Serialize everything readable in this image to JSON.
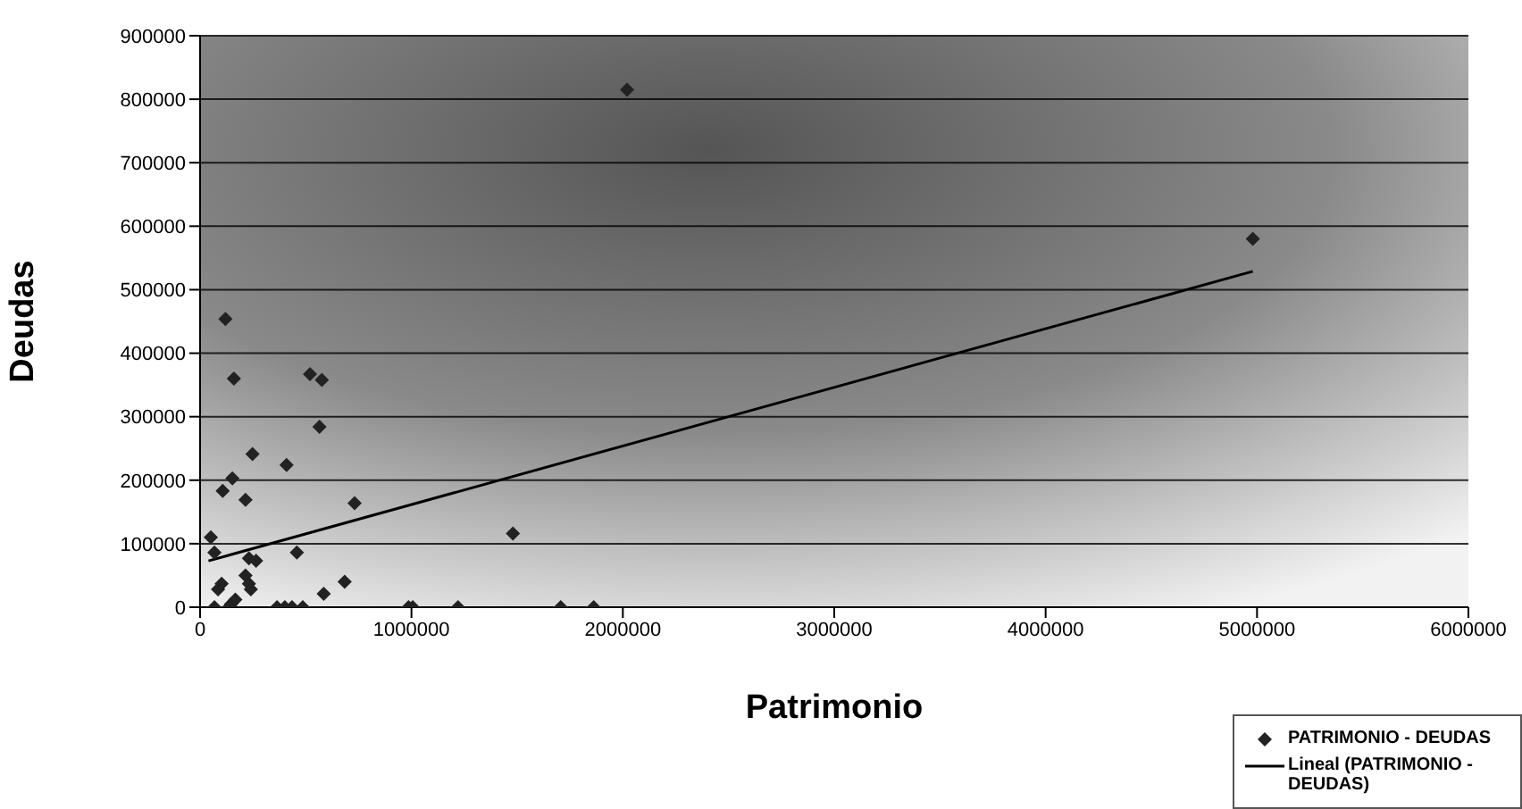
{
  "chart_data": {
    "type": "scatter",
    "xlabel": "Patrimonio",
    "ylabel": "Deudas",
    "xlim": [
      0,
      6000000
    ],
    "xticks": [
      0,
      1000000,
      2000000,
      3000000,
      4000000,
      5000000,
      6000000
    ],
    "ylim": [
      0,
      900000
    ],
    "yticks": [
      0,
      100000,
      200000,
      300000,
      400000,
      500000,
      600000,
      700000,
      800000,
      900000
    ],
    "grid": "y",
    "legend": "bottom right",
    "series": [
      {
        "name": "PATRIMONIO - DEUDAS",
        "color": "#222222",
        "marker": "diamond",
        "x": [
          120000,
          160000,
          520000,
          576000,
          565000,
          248000,
          409000,
          153000,
          107000,
          215000,
          731000,
          51000,
          1480000,
          68000,
          458000,
          231000,
          265000,
          215000,
          231000,
          240000,
          102000,
          85000,
          684000,
          585000,
          167000,
          147000,
          68000,
          136000,
          364000,
          401000,
          435000,
          486000,
          986000,
          1006000,
          1220000,
          1706000,
          1862000,
          2020000,
          4980000
        ],
        "values": [
          454000,
          360000,
          367000,
          358000,
          284000,
          241000,
          224000,
          203000,
          183000,
          169000,
          164000,
          110000,
          116000,
          86000,
          86000,
          77000,
          73000,
          50000,
          37000,
          28000,
          37000,
          28000,
          40000,
          21000,
          12000,
          5000,
          0,
          0,
          0,
          0,
          0,
          0,
          0,
          0,
          0,
          0,
          0,
          815000,
          580000
        ]
      },
      {
        "name": "Lineal (PATRIMONIO - DEUDAS)",
        "type": "line",
        "color": "#000000",
        "line_style": "solid",
        "x": [
          40000,
          4980000
        ],
        "values": [
          73000,
          529000
        ]
      }
    ]
  }
}
